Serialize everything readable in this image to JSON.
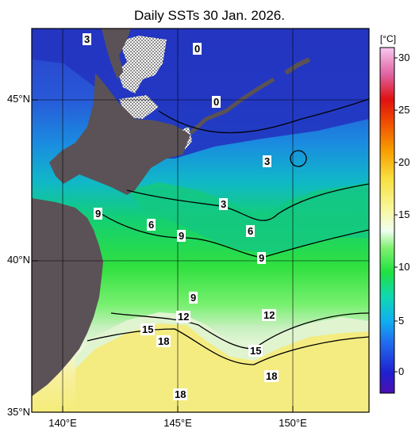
{
  "title": "Daily SSTs 30 Jan. 2026.",
  "lat_labels": [
    "35°N",
    "40°N",
    "45°N"
  ],
  "lon_labels": [
    "140°E",
    "145°E",
    "150°E"
  ],
  "colorbar": {
    "unit": "[°C]",
    "ticks": [
      "0",
      "5",
      "10",
      "15",
      "20",
      "25",
      "30"
    ],
    "range": [
      -2,
      32
    ]
  },
  "contour_labels": [
    "3",
    "0",
    "0",
    "3",
    "9",
    "6",
    "3",
    "6",
    "9",
    "9",
    "9",
    "12",
    "12",
    "15",
    "15",
    "18",
    "18",
    "18"
  ],
  "colors": {
    "land": "#5a5256",
    "ice": "#ffffff",
    "cold": "#2020c8",
    "warm": "#f8f080"
  }
}
